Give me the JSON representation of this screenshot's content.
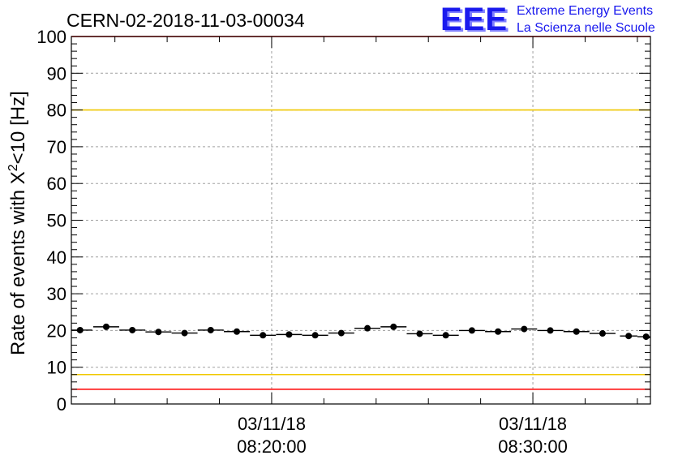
{
  "header": {
    "run_title": "CERN-02-2018-11-03-00034",
    "logo_text": "EEE",
    "org_line1": "Extreme Energy Events",
    "org_line2": "La Scienza nelle Scuole"
  },
  "colors": {
    "logo_blue": "#1a1aee",
    "limit_red": "#ff0000",
    "limit_yellow": "#f0c800",
    "markers": "#000000",
    "grid": "#a0a0a0"
  },
  "chart_data": {
    "type": "scatter",
    "ylabel_prefix": "Rate of events with X",
    "ylabel_sup": "2",
    "ylabel_suffix": "<10 [Hz]",
    "xlabel": "",
    "ylim": [
      0,
      100
    ],
    "yticks": [
      0,
      10,
      20,
      30,
      40,
      50,
      60,
      70,
      80,
      90,
      100
    ],
    "x_range": [
      "2018-11-03T08:12:20",
      "2018-11-03T08:34:30"
    ],
    "xticks": [
      {
        "time": "2018-11-03T08:20:00",
        "date_label": "03/11/18",
        "time_label": "08:20:00"
      },
      {
        "time": "2018-11-03T08:30:00",
        "date_label": "03/11/18",
        "time_label": "08:30:00"
      }
    ],
    "grid": true,
    "reference_lines": [
      {
        "y": 100,
        "color": "red"
      },
      {
        "y": 80,
        "color": "yellow"
      },
      {
        "y": 8,
        "color": "yellow"
      },
      {
        "y": 4,
        "color": "red"
      }
    ],
    "series": [
      {
        "x": [
          "08:12:40",
          "08:13:40",
          "08:14:40",
          "08:15:40",
          "08:16:40",
          "08:17:40",
          "08:18:40",
          "08:19:40",
          "08:20:40",
          "08:21:40",
          "08:22:40",
          "08:23:40",
          "08:24:40",
          "08:25:40",
          "08:26:40",
          "08:27:40",
          "08:28:40",
          "08:29:40",
          "08:30:40",
          "08:31:40",
          "08:32:40",
          "08:33:40",
          "08:34:20"
        ],
        "values": [
          20.1,
          21.0,
          20.1,
          19.6,
          19.3,
          20.1,
          19.7,
          18.7,
          18.9,
          18.7,
          19.3,
          20.6,
          21.0,
          19.1,
          18.7,
          20.0,
          19.7,
          20.4,
          20.0,
          19.7,
          19.2,
          18.5,
          18.3
        ]
      }
    ]
  }
}
